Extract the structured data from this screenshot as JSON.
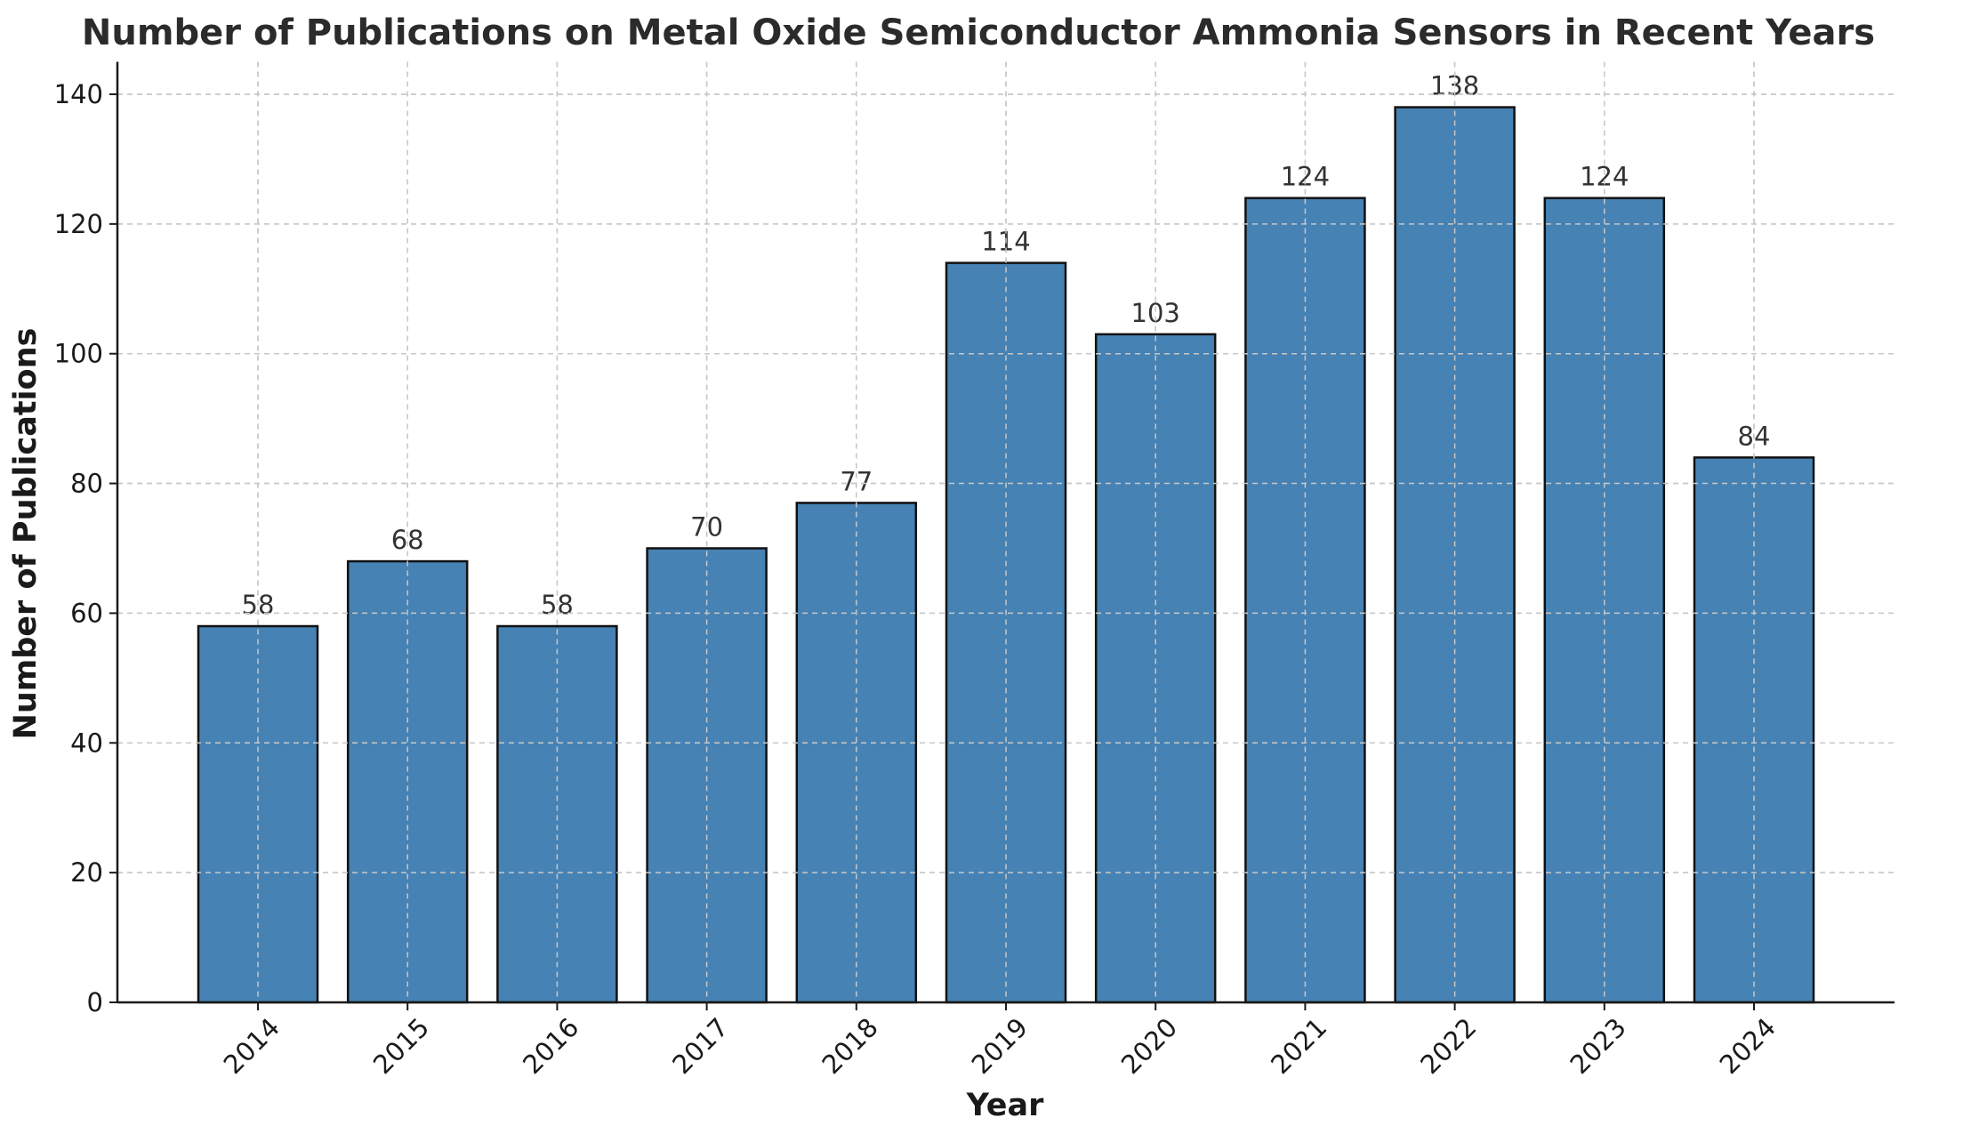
{
  "chart_data": {
    "type": "bar",
    "title": "Number of Publications on Metal Oxide Semiconductor Ammonia Sensors in Recent Years",
    "xlabel": "Year",
    "ylabel": "Number of Publications",
    "categories": [
      "2014",
      "2015",
      "2016",
      "2017",
      "2018",
      "2019",
      "2020",
      "2021",
      "2022",
      "2023",
      "2024"
    ],
    "values": [
      58,
      68,
      58,
      70,
      77,
      114,
      103,
      124,
      138,
      124,
      84
    ],
    "ylim": [
      0,
      145
    ],
    "yticks": [
      0,
      20,
      40,
      60,
      80,
      100,
      120,
      140
    ],
    "grid": true,
    "bar_color": "#4682b4",
    "bar_edge_color": "#111111",
    "x_tick_rotation": -45
  }
}
